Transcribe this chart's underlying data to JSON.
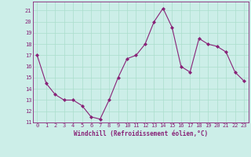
{
  "x": [
    0,
    1,
    2,
    3,
    4,
    5,
    6,
    7,
    8,
    9,
    10,
    11,
    12,
    13,
    14,
    15,
    16,
    17,
    18,
    19,
    20,
    21,
    22,
    23
  ],
  "y": [
    17,
    14.5,
    13.5,
    13,
    13,
    12.5,
    11.5,
    11.3,
    13,
    15,
    16.7,
    17,
    18,
    20,
    21.2,
    19.5,
    16,
    15.5,
    18.5,
    18,
    17.8,
    17.3,
    15.5,
    14.7
  ],
  "line_color": "#882277",
  "marker": "D",
  "marker_size": 2.0,
  "bg_color": "#cceee8",
  "grid_color": "#aaddcc",
  "xlabel": "Windchill (Refroidissement éolien,°C)",
  "xlabel_color": "#882277",
  "tick_color": "#882277",
  "xlim": [
    -0.5,
    23.5
  ],
  "ylim": [
    11,
    21.8
  ],
  "yticks": [
    11,
    12,
    13,
    14,
    15,
    16,
    17,
    18,
    19,
    20,
    21
  ],
  "xticks": [
    0,
    1,
    2,
    3,
    4,
    5,
    6,
    7,
    8,
    9,
    10,
    11,
    12,
    13,
    14,
    15,
    16,
    17,
    18,
    19,
    20,
    21,
    22,
    23
  ],
  "xtick_labels": [
    "0",
    "1",
    "2",
    "3",
    "4",
    "5",
    "6",
    "7",
    "8",
    "9",
    "10",
    "11",
    "12",
    "13",
    "14",
    "15",
    "16",
    "17",
    "18",
    "19",
    "20",
    "21",
    "22",
    "23"
  ]
}
